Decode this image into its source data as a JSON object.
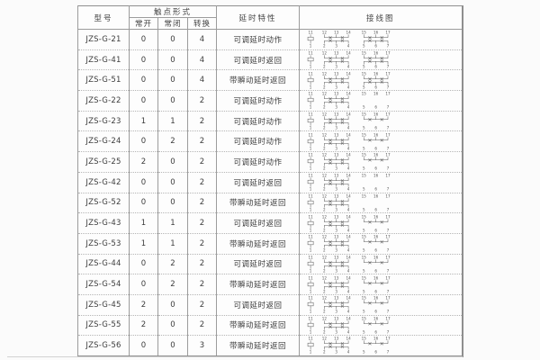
{
  "table": {
    "headers": {
      "model": "型号",
      "contact_form": "触点形式",
      "contact_no": "常开",
      "contact_nc": "常闭",
      "contact_co": "转换",
      "delay": "延时特性",
      "wiring": "接线图"
    },
    "rows": [
      {
        "model": "JZS-G-21",
        "no": "0",
        "nc": "0",
        "co": "4",
        "delay": "可调延时动作",
        "diagram": "full"
      },
      {
        "model": "JZS-G-41",
        "no": "0",
        "nc": "0",
        "co": "4",
        "delay": "可调延时返回",
        "diagram": "full"
      },
      {
        "model": "JZS-G-51",
        "no": "0",
        "nc": "0",
        "co": "4",
        "delay": "带瞬动延时返回",
        "diagram": "full"
      },
      {
        "model": "JZS-G-22",
        "no": "0",
        "nc": "0",
        "co": "2",
        "delay": "可调延时动作",
        "diagram": "two"
      },
      {
        "model": "JZS-G-23",
        "no": "1",
        "nc": "1",
        "co": "2",
        "delay": "可调延时动作",
        "diagram": "mixed"
      },
      {
        "model": "JZS-G-24",
        "no": "0",
        "nc": "2",
        "co": "2",
        "delay": "可调延时动作",
        "diagram": "mixed"
      },
      {
        "model": "JZS-G-25",
        "no": "2",
        "nc": "0",
        "co": "2",
        "delay": "可调延时动作",
        "diagram": "mixed"
      },
      {
        "model": "JZS-G-42",
        "no": "0",
        "nc": "0",
        "co": "2",
        "delay": "可调延时返回",
        "diagram": "two"
      },
      {
        "model": "JZS-G-52",
        "no": "0",
        "nc": "0",
        "co": "2",
        "delay": "带瞬动延时返回",
        "diagram": "two"
      },
      {
        "model": "JZS-G-43",
        "no": "1",
        "nc": "1",
        "co": "2",
        "delay": "可调延时返回",
        "diagram": "mixed"
      },
      {
        "model": "JZS-G-53",
        "no": "1",
        "nc": "1",
        "co": "2",
        "delay": "带瞬动延时返回",
        "diagram": "mixed"
      },
      {
        "model": "JZS-G-44",
        "no": "0",
        "nc": "2",
        "co": "2",
        "delay": "可调延时返回",
        "diagram": "mixed"
      },
      {
        "model": "JZS-G-54",
        "no": "0",
        "nc": "2",
        "co": "2",
        "delay": "带瞬动延时返回",
        "diagram": "mixed"
      },
      {
        "model": "JZS-G-45",
        "no": "2",
        "nc": "0",
        "co": "2",
        "delay": "可调延时返回",
        "diagram": "mixed"
      },
      {
        "model": "JZS-G-55",
        "no": "2",
        "nc": "0",
        "co": "2",
        "delay": "带瞬动延时返回",
        "diagram": "mixed"
      },
      {
        "model": "JZS-G-56",
        "no": "0",
        "nc": "0",
        "co": "3",
        "delay": "带瞬动延时返回",
        "diagram": "mixed"
      }
    ],
    "diagram_templates": {
      "full": {
        "coil_top": "11",
        "coil_bottom": "1",
        "top": [
          {
            "labels": [
              "12",
              "13",
              "14"
            ],
            "contacts": true
          },
          {
            "labels": [
              "15",
              "16",
              "17"
            ],
            "contacts": true
          }
        ],
        "bottom": [
          {
            "labels": [
              "2",
              "3",
              "4"
            ],
            "contacts": true
          },
          {
            "labels": [
              "5",
              "6",
              "7"
            ],
            "contacts": true
          }
        ]
      },
      "two": {
        "coil_top": "11",
        "coil_bottom": "1",
        "top": [
          {
            "labels": [
              "12",
              "13",
              "14"
            ],
            "contacts": true
          },
          {
            "labels": [
              "15",
              "16",
              "17"
            ],
            "contacts": false
          }
        ],
        "bottom": [
          {
            "labels": [
              "2",
              "3",
              "4"
            ],
            "contacts": true
          },
          {
            "labels": [
              "5",
              "6",
              "7"
            ],
            "contacts": false
          }
        ]
      },
      "mixed": {
        "coil_top": "11",
        "coil_bottom": "1",
        "top": [
          {
            "labels": [
              "12",
              "13",
              "14"
            ],
            "contacts": true
          },
          {
            "labels": [
              "15",
              "16",
              "17"
            ],
            "contacts": true
          }
        ],
        "bottom": [
          {
            "labels": [
              "2",
              "3",
              "4"
            ],
            "contacts": true
          },
          {
            "labels": [
              "5",
              "6",
              "7"
            ],
            "contacts": false
          }
        ]
      }
    }
  },
  "colors": {
    "page_bg": "#fbfbfb",
    "table_border": "#8f8f8f",
    "grid_line": "#9c9c9c",
    "dotted_separator": "#b5b5b5",
    "text": "#3c3c3c",
    "diagram_stroke": "#5a5a5a"
  }
}
